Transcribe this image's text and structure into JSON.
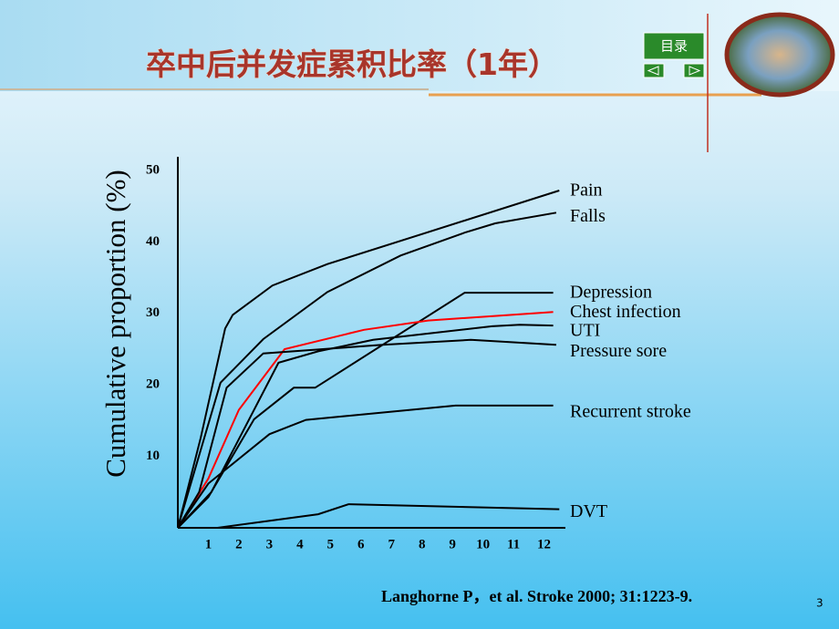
{
  "header": {
    "title": "卒中后并发症累积比率（1年）",
    "nav_button": "目录"
  },
  "chart_data": {
    "type": "line",
    "ylabel": "Cumulative proportion (%)",
    "xlim": [
      0,
      13
    ],
    "xticks": [
      1,
      2,
      3,
      4,
      5,
      6,
      7,
      8,
      9,
      10,
      11,
      12
    ],
    "ylim": [
      0,
      50
    ],
    "yticks": [
      10,
      20,
      30,
      40,
      50
    ],
    "grid": false,
    "series": [
      {
        "name": "Pain",
        "color": "#000000",
        "x": [
          0,
          0.75,
          1.55,
          1.8,
          3.1,
          4.9,
          12.5
        ],
        "values": [
          0,
          12.6,
          27.9,
          29.8,
          33.9,
          36.9,
          47.2
        ]
      },
      {
        "name": "Falls",
        "color": "#000000",
        "x": [
          0,
          1.4,
          2.8,
          4.9,
          7.3,
          9.4,
          10.4,
          12.4
        ],
        "values": [
          0,
          20.3,
          26.4,
          33.0,
          38.1,
          41.3,
          42.6,
          44.1
        ]
      },
      {
        "name": "Depression",
        "color": "#000000",
        "x": [
          0,
          1,
          2.5,
          3.8,
          4.5,
          9.4,
          12.3
        ],
        "values": [
          0,
          4.3,
          15.2,
          19.6,
          19.6,
          32.9,
          32.9
        ]
      },
      {
        "name": "Chest infection",
        "color": "#ff0000",
        "x": [
          0,
          1,
          2,
          3.5,
          6.1,
          8.2,
          12.3
        ],
        "values": [
          0,
          6.9,
          16.5,
          25.0,
          27.7,
          29.0,
          30.2
        ]
      },
      {
        "name": "UTI",
        "color": "#000000",
        "x": [
          0,
          1.1,
          3.3,
          4.6,
          6.4,
          10.3,
          11.2,
          12.3
        ],
        "values": [
          0,
          5.0,
          23.1,
          24.7,
          26.3,
          28.2,
          28.4,
          28.3
        ]
      },
      {
        "name": "Pressure sore",
        "color": "#000000",
        "x": [
          0,
          0.7,
          1.6,
          2.8,
          6.7,
          9.6,
          12.4
        ],
        "values": [
          0,
          5.0,
          19.6,
          24.4,
          25.6,
          26.3,
          25.6
        ]
      },
      {
        "name": "Recurrent stroke",
        "color": "#000000",
        "x": [
          0,
          1,
          3,
          4.2,
          9.1,
          12.3
        ],
        "values": [
          0,
          6.2,
          13.1,
          15.1,
          17.1,
          17.1
        ]
      },
      {
        "name": "DVT",
        "color": "#000000",
        "x": [
          0,
          1.3,
          4.6,
          5.6,
          12.5
        ],
        "values": [
          0,
          0,
          1.9,
          3.3,
          2.6
        ]
      }
    ]
  },
  "footer": {
    "citation": "Langhorne P，et al. Stroke 2000; 31:1223-9.",
    "page_number": "3"
  }
}
